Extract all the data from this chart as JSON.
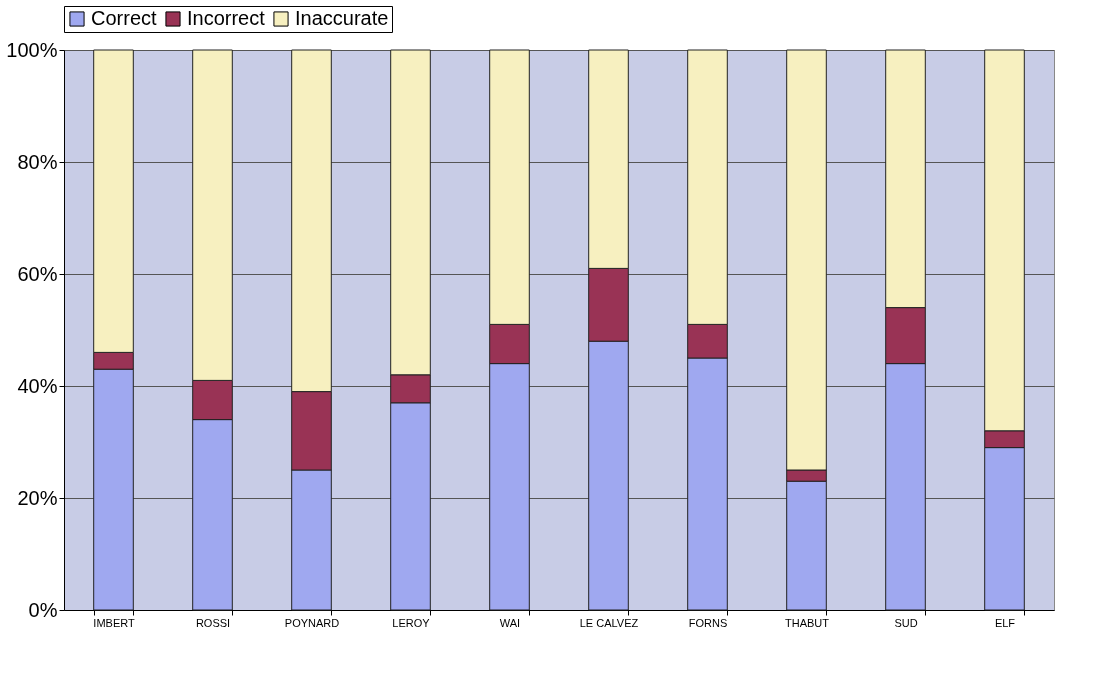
{
  "chart_data": {
    "type": "bar",
    "stacked": true,
    "categories": [
      "IMBERT",
      "ROSSI",
      "POYNARD",
      "LEROY",
      "WAI",
      "LE CALVEZ",
      "FORNS",
      "THABUT",
      "SUD",
      "ELF"
    ],
    "series": [
      {
        "name": "Correct",
        "color": "#9fa8f0",
        "values": [
          43,
          34,
          25,
          37,
          44,
          48,
          45,
          23,
          44,
          29
        ]
      },
      {
        "name": "Incorrect",
        "color": "#993355",
        "values": [
          3,
          7,
          14,
          5,
          7,
          13,
          6,
          2,
          10,
          3
        ]
      },
      {
        "name": "Inaccurate",
        "color": "#f7f0c0",
        "values": [
          54,
          59,
          61,
          58,
          49,
          39,
          49,
          75,
          46,
          68
        ]
      }
    ],
    "ylim": [
      0,
      100
    ],
    "yticks": [
      {
        "value": 0,
        "label": "0%"
      },
      {
        "value": 20,
        "label": "20%"
      },
      {
        "value": 40,
        "label": "40%"
      },
      {
        "value": 60,
        "label": "60%"
      },
      {
        "value": 80,
        "label": "80%"
      },
      {
        "value": 100,
        "label": "100%"
      }
    ],
    "grid": "y",
    "legend": "top"
  }
}
